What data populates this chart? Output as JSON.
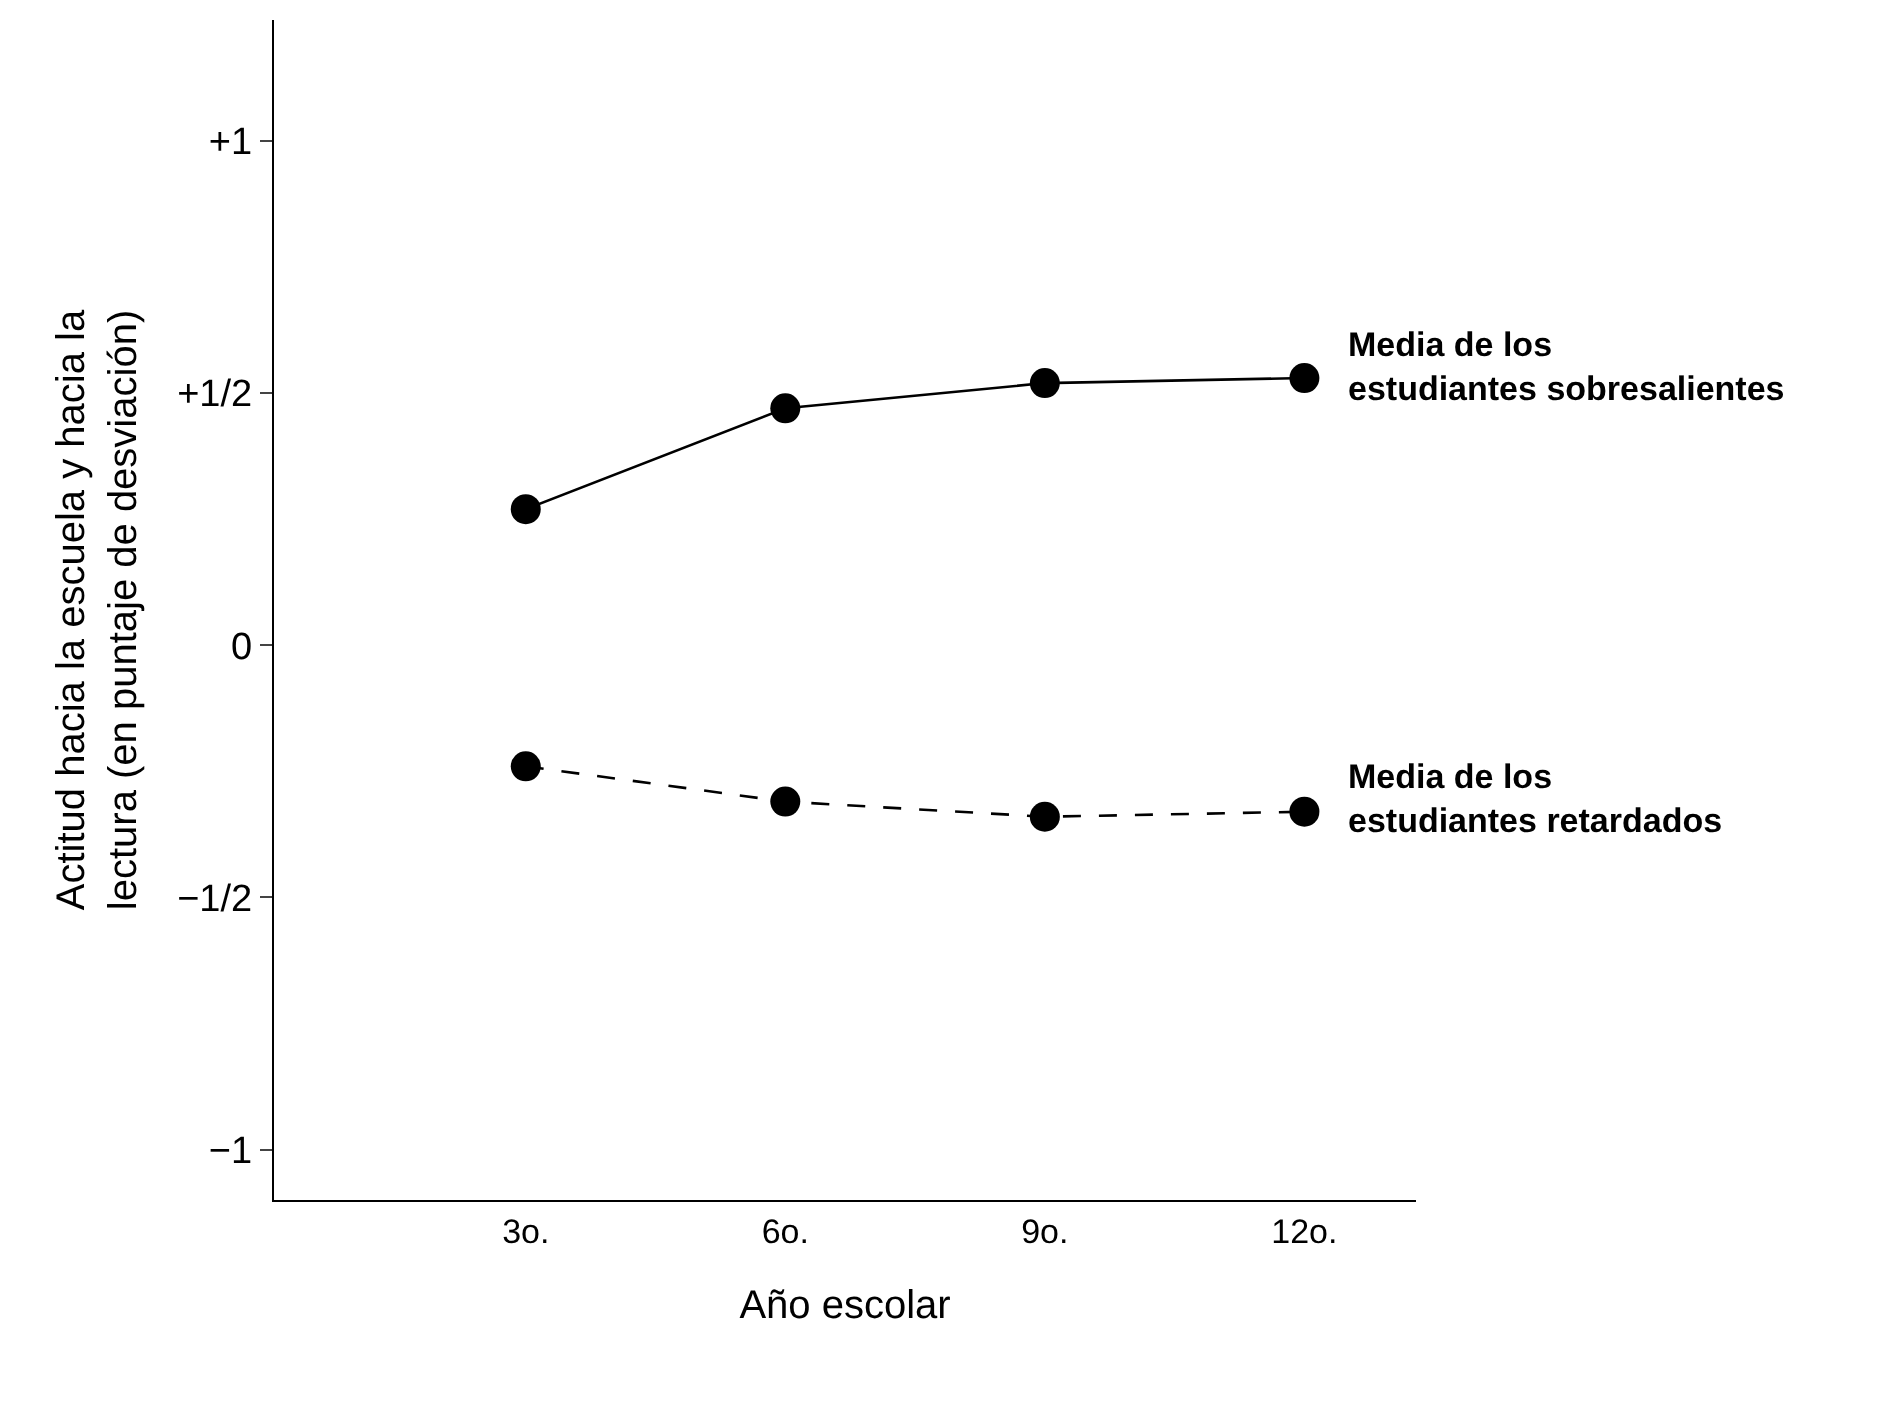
{
  "chart_data": {
    "type": "line",
    "xlabel": "Año escolar",
    "ylabel": "Actitud hacia la escuela y hacia la\nlectura (en puntaje de desviación)",
    "categories": [
      "3o.",
      "6o.",
      "9o.",
      "12o."
    ],
    "series": [
      {
        "name": "Media de los\nestudiantes sobresalientes",
        "color": "#000000",
        "line_style": "solid",
        "values": [
          0.27,
          0.47,
          0.52,
          0.53
        ]
      },
      {
        "name": "Media de los\nestudiantes retardados",
        "color": "#000000",
        "line_style": "dashed",
        "values": [
          -0.24,
          -0.31,
          -0.34,
          -0.33
        ]
      }
    ],
    "ylim": [
      -1.1,
      1.24
    ],
    "yticks": [
      {
        "value": 1,
        "label": "+1"
      },
      {
        "value": 0.5,
        "label": "+1/2"
      },
      0,
      {
        "value": -0.5,
        "label": "−1/2"
      },
      {
        "value": -1,
        "label": "−1"
      }
    ],
    "marker": "circle",
    "grid": false,
    "legend": false
  }
}
